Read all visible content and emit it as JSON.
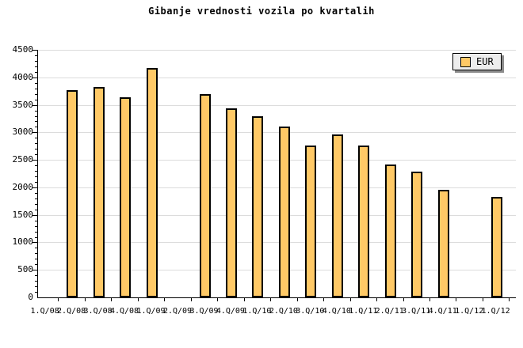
{
  "chart_data": {
    "type": "bar",
    "title": "Gibanje vrednosti vozila po kvartalih",
    "series_name": "EUR",
    "categories": [
      "1.Q/08",
      "2.Q/08",
      "3.Q/08",
      "4.Q/08",
      "1.Q/09",
      "2.Q/09",
      "3.Q/09",
      "4.Q/09",
      "1.Q/10",
      "2.Q/10",
      "3.Q/10",
      "4.Q/10",
      "1.Q/11",
      "2.Q/11",
      "3.Q/11",
      "4.Q/11",
      "1.Q/12",
      "1.Q/12"
    ],
    "values": [
      null,
      3770,
      3830,
      3640,
      4170,
      null,
      3700,
      3440,
      3290,
      3110,
      2760,
      2960,
      2760,
      2420,
      2290,
      1950,
      null,
      1830
    ],
    "xlabel": "",
    "ylabel": "",
    "ylim": [
      0,
      4500
    ],
    "ytick_step": 500,
    "yminor_step": 100,
    "grid": "horizontal-major",
    "legend_position": "top-right",
    "colors": {
      "background": "#FFFFFF",
      "bar_fill": "#FFC966",
      "bar_border": "#000000",
      "gridline": "#DCDCDC",
      "axis": "#000000",
      "text": "#000000",
      "legend_bg": "#EDEDED",
      "legend_shadow": "#8C8C8C"
    }
  }
}
